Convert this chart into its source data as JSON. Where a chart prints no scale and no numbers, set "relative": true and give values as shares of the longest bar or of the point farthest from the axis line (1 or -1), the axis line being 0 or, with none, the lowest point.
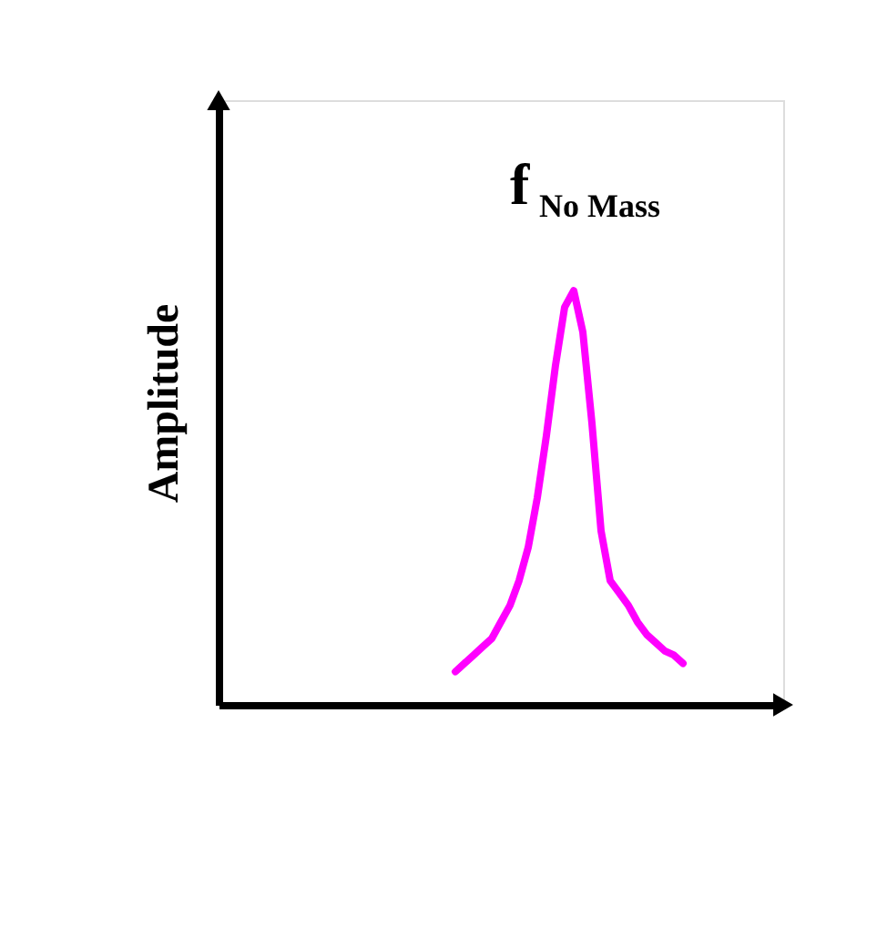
{
  "chart_data": {
    "type": "line",
    "relative": true,
    "ylabel": "Amplitude",
    "annotations": [
      "f$_{No Mass}$"
    ],
    "color": "#ff00ff",
    "marker": "none",
    "line_style": "solid",
    "grid": false,
    "categories": [
      null,
      null,
      null,
      null,
      null,
      null,
      null,
      null,
      null,
      null,
      null,
      null,
      null,
      null,
      null,
      null,
      null,
      null,
      null,
      null,
      null,
      null,
      null,
      null,
      null,
      null,
      null,
      null,
      null,
      null,
      null,
      null,
      null,
      null,
      null,
      null,
      null,
      null,
      null,
      null,
      null,
      null,
      null,
      null,
      null,
      null,
      null,
      null,
      null,
      null,
      null,
      null,
      null,
      null,
      null,
      null,
      null,
      null,
      null,
      null,
      null
    ],
    "values": [
      null,
      null,
      null,
      null,
      null,
      null,
      null,
      null,
      null,
      null,
      null,
      null,
      null,
      null,
      null,
      null,
      null,
      null,
      null,
      null,
      null,
      null,
      null,
      null,
      null,
      null,
      0.08,
      0.1,
      0.12,
      0.14,
      0.16,
      0.2,
      0.24,
      0.3,
      0.38,
      0.5,
      0.65,
      0.82,
      0.96,
      1.0,
      0.9,
      0.68,
      0.42,
      0.3,
      0.27,
      0.24,
      0.2,
      0.17,
      0.15,
      0.13,
      0.12,
      0.1,
      null,
      null,
      null,
      null,
      null,
      null,
      null,
      null,
      null
    ]
  }
}
